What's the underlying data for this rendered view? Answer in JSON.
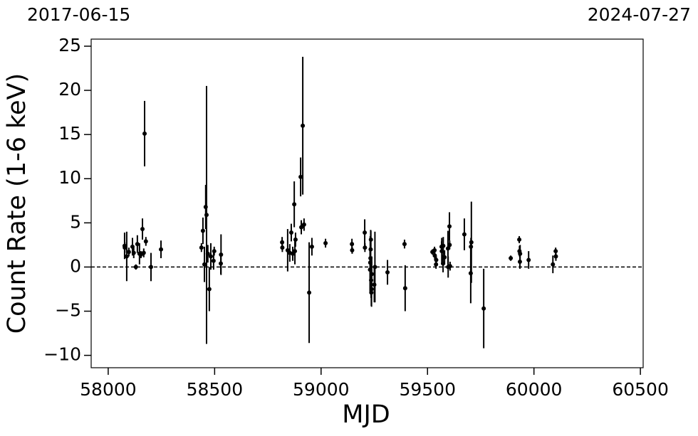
{
  "chart_data": {
    "type": "scatter",
    "top_labels": [
      "2017-06-15",
      "2024-07-27"
    ],
    "x_label": "MJD",
    "y_label": "Count Rate (1-6 keV)",
    "color": "#000000",
    "hline": {
      "value": 0,
      "style": "dashed"
    },
    "xlim": [
      57920,
      60513
    ],
    "ylim": [
      -11.4,
      25.8
    ],
    "xticks": [
      58000,
      58500,
      59000,
      59500,
      60000,
      60500
    ],
    "yticks": [
      {
        "value": -10,
        "label": "−10"
      },
      {
        "value": -5,
        "label": "−5"
      },
      0,
      5,
      10,
      15,
      20,
      25
    ],
    "x": [
      58077,
      58078,
      58087,
      58097,
      58114,
      58120,
      58130,
      58137,
      58147,
      58154,
      58161,
      58167,
      58171,
      58177,
      58201,
      58248,
      58438,
      58445,
      58452,
      58458,
      58462,
      58468,
      58475,
      58482,
      58495,
      58498,
      58529,
      58530,
      58817,
      58818,
      58843,
      58853,
      58860,
      58867,
      58874,
      58877,
      58880,
      58904,
      58907,
      58914,
      58920,
      58944,
      58957,
      59021,
      59145,
      59146,
      59205,
      59206,
      59230,
      59231,
      59232,
      59233,
      59234,
      59235,
      59236,
      59237,
      59238,
      59250,
      59253,
      59312,
      59392,
      59395,
      59523,
      59533,
      59534,
      59540,
      59541,
      59566,
      59567,
      59573,
      59574,
      59580,
      59596,
      59597,
      59603,
      59604,
      59606,
      59673,
      59703,
      59704,
      59706,
      59764,
      59891,
      59931,
      59932,
      59934,
      59935,
      59975,
      60089,
      60102,
      60103
    ],
    "values": [
      2.4,
      2.2,
      1.2,
      1.7,
      2.3,
      1.6,
      0.0,
      2.6,
      1.5,
      1.4,
      4.3,
      1.6,
      15.1,
      2.9,
      0.0,
      2.0,
      2.2,
      4.1,
      0.3,
      6.8,
      5.9,
      1.5,
      -2.5,
      1.2,
      0.7,
      1.8,
      0.4,
      1.4,
      2.8,
      2.2,
      1.9,
      1.6,
      3.9,
      1.5,
      7.1,
      1.8,
      3.1,
      10.2,
      4.5,
      16.0,
      4.8,
      -2.9,
      2.3,
      2.7,
      2.6,
      1.9,
      3.9,
      2.2,
      -0.3,
      0.5,
      1.0,
      2.0,
      3.1,
      -1.5,
      -2.9,
      -2.5,
      -0.8,
      -2.0,
      0.0,
      -0.6,
      2.6,
      -2.4,
      1.7,
      1.9,
      1.3,
      0.3,
      0.8,
      2.3,
      1.8,
      0.4,
      2.4,
      1.1,
      2.1,
      0.0,
      4.6,
      2.5,
      0.1,
      3.7,
      -0.7,
      2.3,
      2.8,
      -4.7,
      1.0,
      3.1,
      1.8,
      0.6,
      1.5,
      0.8,
      0.3,
      1.8,
      1.2
    ],
    "errors": [
      1.5,
      0.6,
      2.8,
      0.5,
      1.0,
      0.6,
      0.3,
      1.0,
      1.2,
      0.4,
      1.2,
      0.5,
      3.7,
      0.5,
      1.6,
      1.0,
      0.5,
      1.5,
      2.0,
      2.5,
      14.6,
      1.0,
      2.5,
      1.5,
      1.0,
      0.5,
      1.2,
      2.3,
      0.6,
      0.5,
      2.4,
      1.0,
      1.0,
      0.8,
      2.6,
      1.5,
      0.8,
      2.2,
      0.8,
      7.8,
      0.7,
      5.7,
      1.0,
      0.5,
      0.6,
      0.4,
      1.5,
      0.5,
      2.5,
      3.0,
      2.0,
      2.2,
      1.0,
      2.0,
      1.5,
      2.0,
      2.0,
      2.0,
      4.0,
      1.4,
      0.5,
      2.6,
      0.3,
      0.4,
      0.5,
      0.5,
      0.4,
      0.6,
      1.5,
      1.0,
      1.0,
      0.8,
      2.0,
      1.2,
      1.6,
      0.5,
      0.5,
      1.8,
      3.4,
      1.0,
      4.6,
      4.5,
      0.3,
      0.4,
      0.6,
      0.8,
      1.0,
      1.0,
      1.0,
      0.4,
      0.5
    ]
  }
}
